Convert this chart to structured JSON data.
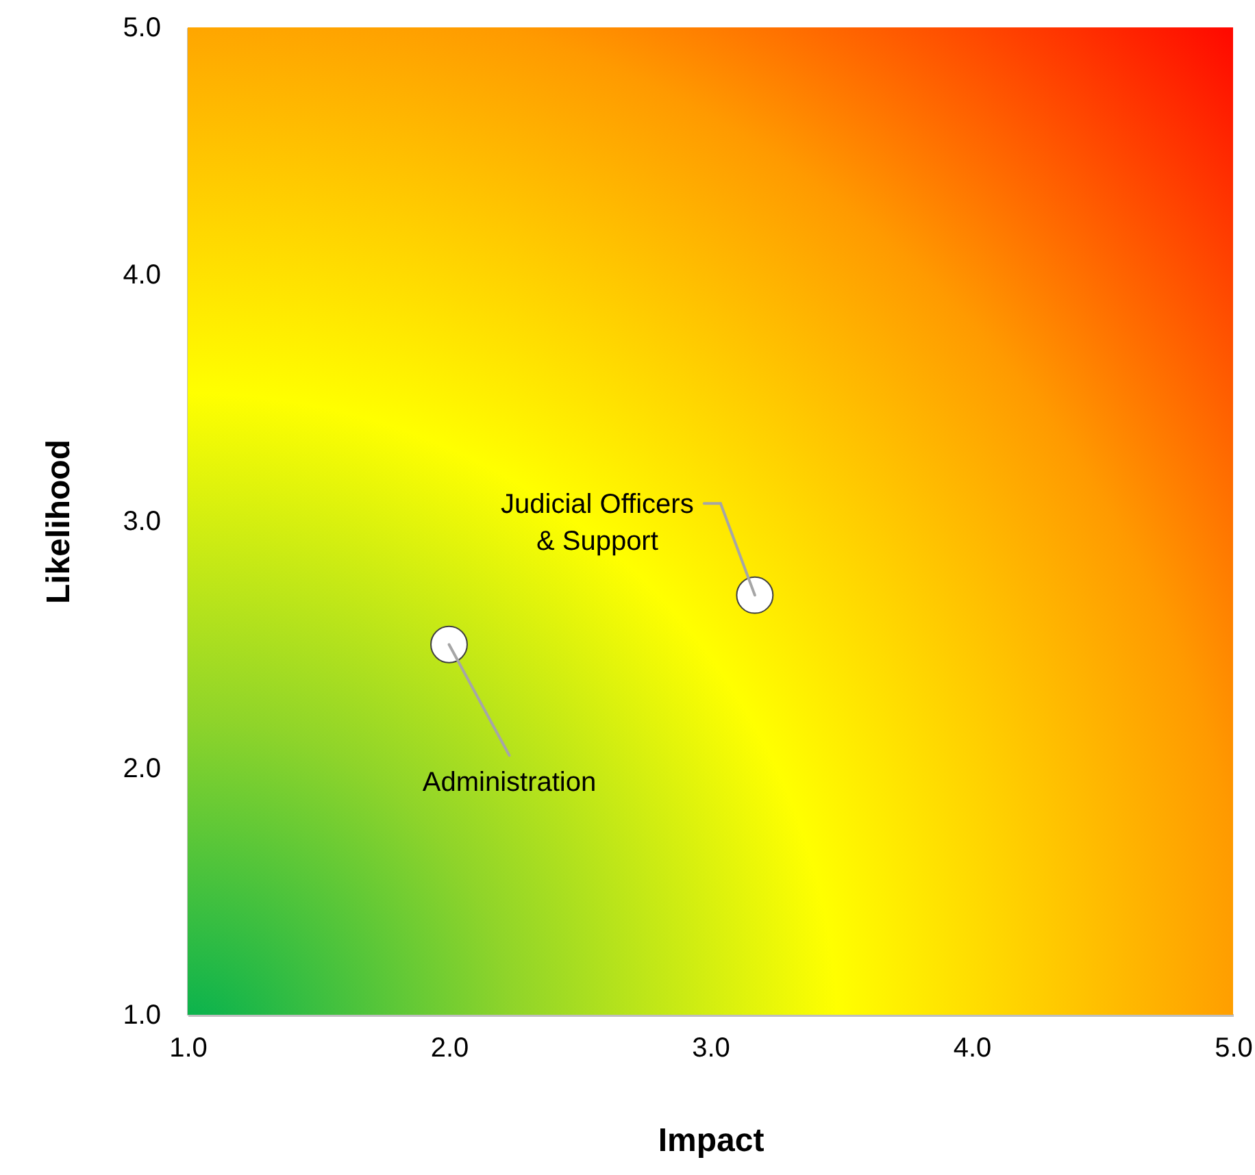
{
  "chart_data": {
    "type": "scatter",
    "xlabel": "Impact",
    "ylabel": "Likelihood",
    "series": [
      {
        "color": "#ffffff",
        "x": [
          2.0,
          3.17
        ],
        "values": [
          2.5,
          2.7
        ]
      }
    ],
    "annotations": [
      {
        "text": "Administration",
        "x": 2.0,
        "y": 2.5
      },
      {
        "text": "Judicial Officers\n& Support",
        "x": 3.17,
        "y": 2.7
      }
    ],
    "xlim": [
      1,
      5
    ],
    "ylim": [
      1,
      5
    ],
    "xticks": [
      {
        "value": 1,
        "label": "1.0"
      },
      {
        "value": 2,
        "label": "2.0"
      },
      {
        "value": 3,
        "label": "3.0"
      },
      {
        "value": 4,
        "label": "4.0"
      },
      {
        "value": 5,
        "label": "5.0"
      }
    ],
    "yticks": [
      {
        "value": 1,
        "label": "1.0"
      },
      {
        "value": 2,
        "label": "2.0"
      },
      {
        "value": 3,
        "label": "3.0"
      },
      {
        "value": 4,
        "label": "4.0"
      },
      {
        "value": 5,
        "label": "5.0"
      }
    ],
    "grid": false,
    "marker": "circle"
  }
}
